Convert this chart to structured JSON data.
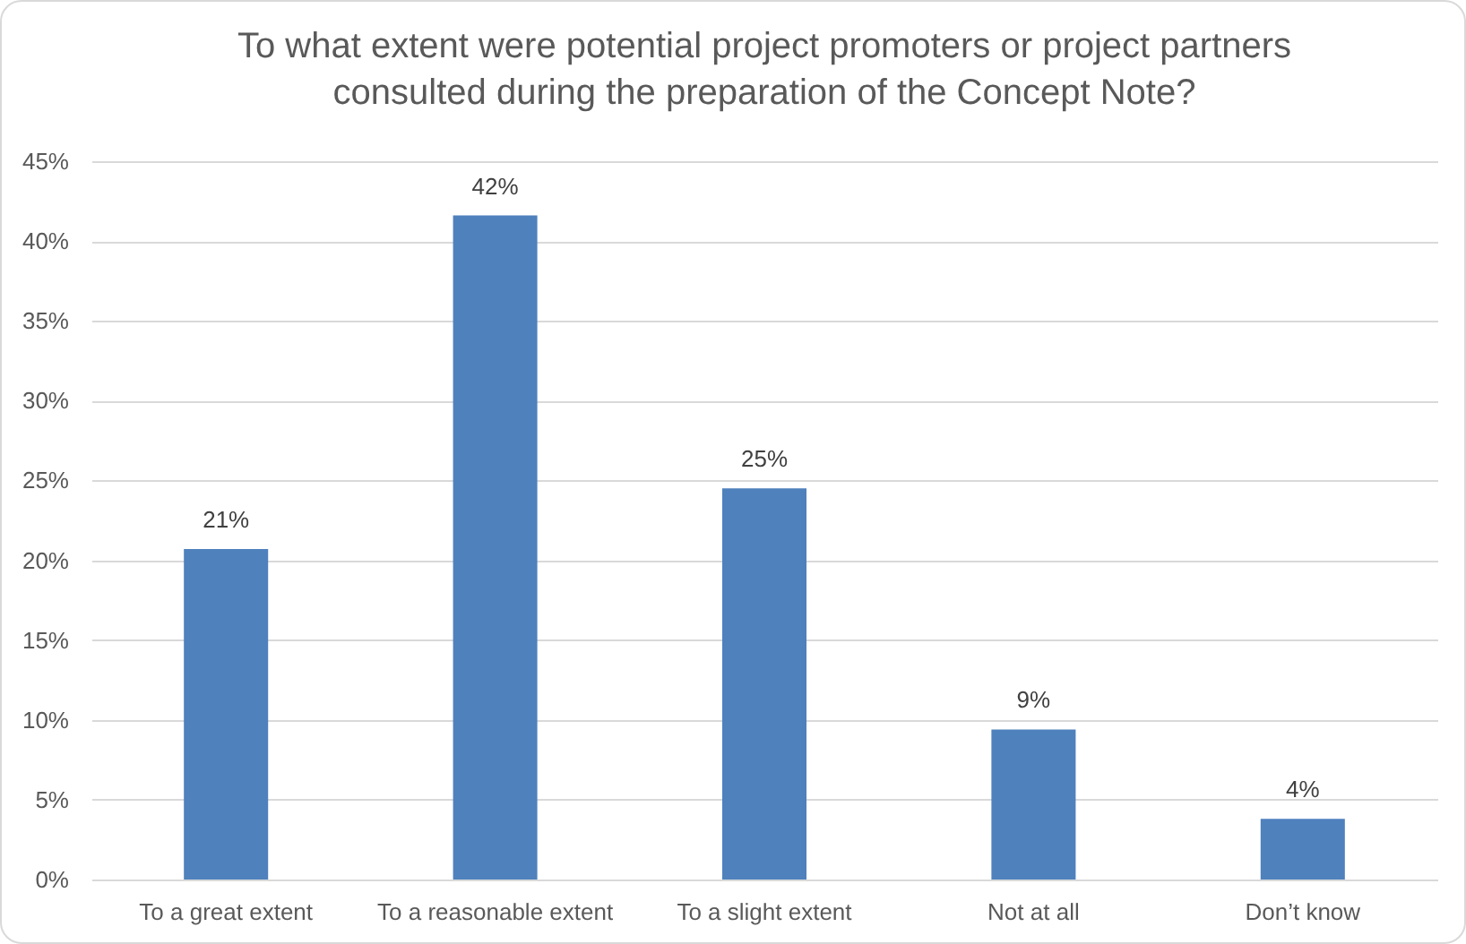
{
  "chart_data": {
    "type": "bar",
    "title": "To what extent were potential project promoters or project partners consulted during the preparation of the Concept Note?",
    "categories": [
      "To a great extent",
      "To a reasonable extent",
      "To a slight extent",
      "Not at all",
      "Don’t know"
    ],
    "values": [
      20.7,
      41.6,
      24.5,
      9.4,
      3.8
    ],
    "value_labels": [
      "21%",
      "42%",
      "25%",
      "9%",
      "4%"
    ],
    "color": "#4f81bd",
    "ylim": [
      0,
      45
    ],
    "yticks": [
      {
        "value": 0,
        "label": "0%"
      },
      {
        "value": 5,
        "label": "5%"
      },
      {
        "value": 10,
        "label": "10%"
      },
      {
        "value": 15,
        "label": "15%"
      },
      {
        "value": 20,
        "label": "20%"
      },
      {
        "value": 25,
        "label": "25%"
      },
      {
        "value": 30,
        "label": "30%"
      },
      {
        "value": 35,
        "label": "35%"
      },
      {
        "value": 40,
        "label": "40%"
      },
      {
        "value": 45,
        "label": "45%"
      }
    ],
    "grid": "y"
  }
}
